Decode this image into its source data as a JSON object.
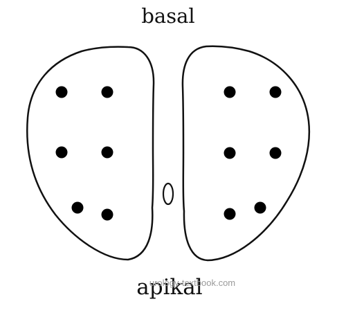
{
  "labels": {
    "top": "basal",
    "bottom": "apikal"
  },
  "watermark": "urology-textbook.com",
  "colors": {
    "outline": "#111111",
    "dot": "#000000",
    "background": "#ffffff",
    "watermark": "#9a9a9a"
  },
  "lobes": [
    {
      "side": "left",
      "dot_count": 6
    },
    {
      "side": "right",
      "dot_count": 6
    }
  ],
  "center_mark": "ellipse"
}
